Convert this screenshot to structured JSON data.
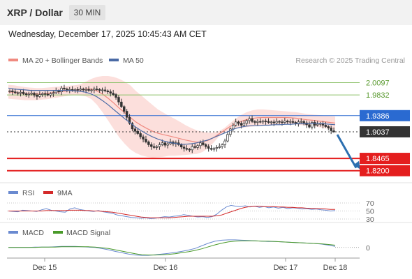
{
  "header": {
    "title": "XRP / Dollar",
    "timeframe": "30 MIN",
    "datetime": "Wednesday, December 17, 2025 10:45:43 AM CET"
  },
  "legend": {
    "ma20_label": "MA 20 + Bollinger Bands",
    "ma50_label": "MA 50",
    "credit": "Research © 2025 Trading Central",
    "rsi_label": "RSI",
    "rsi_ma_label": "9MA",
    "macd_label": "MACD",
    "macd_signal_label": "MACD Signal"
  },
  "colors": {
    "ma20": "#f08a80",
    "bollinger_fill": "#fbd7d3",
    "ma50": "#4a6aa5",
    "candle_up": "#333333",
    "candle_down": "#333333",
    "resistance_green": "#8dc26a",
    "pivot_blue": "#2a6ad1",
    "support_red": "#e41e1e",
    "current_price": "#333333",
    "arrow": "#2c6fb0",
    "rsi": "#6a8ad0",
    "rsi_ma": "#d42a2a",
    "macd": "#6a8ad0",
    "macd_signal": "#4a9a2a"
  },
  "chart_data": {
    "type": "candlestick",
    "instrument": "XRP / Dollar",
    "timeframe": "30 MIN",
    "x_tick_labels": [
      "Dec 15",
      "Dec 16",
      "Dec 17",
      "Dec 18"
    ],
    "price_range": [
      1.8,
      2.045
    ],
    "key_levels": [
      {
        "value": 2.0097,
        "kind": "resistance",
        "label": "2.0097"
      },
      {
        "value": 1.9832,
        "kind": "resistance",
        "label": "1.9832"
      },
      {
        "value": 1.9386,
        "kind": "pivot",
        "label": "1.9386"
      },
      {
        "value": 1.9037,
        "kind": "current",
        "label": "1.9037"
      },
      {
        "value": 1.8465,
        "kind": "support",
        "label": "1.8465"
      },
      {
        "value": 1.82,
        "kind": "support",
        "label": "1.8200"
      }
    ],
    "close_series": [
      1.992,
      1.99,
      1.988,
      1.987,
      1.989,
      1.986,
      1.984,
      1.985,
      1.987,
      1.983,
      1.98,
      1.984,
      1.986,
      1.985,
      1.983,
      1.986,
      1.988,
      1.992,
      1.99,
      1.998,
      1.996,
      1.994,
      1.995,
      1.993,
      1.995,
      1.994,
      1.996,
      1.994,
      1.995,
      1.993,
      1.994,
      1.996,
      1.995,
      1.993,
      1.994,
      1.992,
      1.99,
      1.987,
      1.984,
      1.978,
      1.968,
      1.958,
      1.948,
      1.935,
      1.922,
      1.91,
      1.905,
      1.9,
      1.893,
      1.888,
      1.882,
      1.876,
      1.872,
      1.87,
      1.872,
      1.876,
      1.88,
      1.875,
      1.878,
      1.882,
      1.878,
      1.88,
      1.876,
      1.871,
      1.868,
      1.866,
      1.865,
      1.872,
      1.87,
      1.874,
      1.88,
      1.876,
      1.872,
      1.868,
      1.866,
      1.868,
      1.87,
      1.872,
      1.876,
      1.884,
      1.898,
      1.91,
      1.918,
      1.925,
      1.922,
      1.918,
      1.922,
      1.928,
      1.932,
      1.926,
      1.924,
      1.926,
      1.925,
      1.927,
      1.926,
      1.924,
      1.925,
      1.923,
      1.926,
      1.925,
      1.924,
      1.927,
      1.925,
      1.926,
      1.924,
      1.922,
      1.925,
      1.926,
      1.923,
      1.919,
      1.914,
      1.924,
      1.918,
      1.92,
      1.922,
      1.918,
      1.915,
      1.912,
      1.906,
      1.904
    ],
    "bollinger_upper": [
      2.005,
      2.004,
      2.002,
      2.0,
      1.999,
      1.998,
      1.998,
      1.999,
      2.0,
      2.001,
      2.002,
      2.003,
      2.004,
      2.006,
      2.012,
      2.018,
      2.022,
      2.024,
      2.024,
      2.022,
      2.018,
      2.012,
      2.004,
      1.992,
      1.982,
      1.972,
      1.962,
      1.952,
      1.945,
      1.938,
      1.932,
      1.925,
      1.918,
      1.912,
      1.907,
      1.904,
      1.902,
      1.902,
      1.905,
      1.912,
      1.922,
      1.932,
      1.94,
      1.946,
      1.95,
      1.952,
      1.952,
      1.951,
      1.95,
      1.949,
      1.948,
      1.947,
      1.946,
      1.944,
      1.942,
      1.941,
      1.94,
      1.939,
      1.938,
      1.937
    ],
    "bollinger_lower": [
      1.975,
      1.974,
      1.973,
      1.972,
      1.972,
      1.972,
      1.973,
      1.974,
      1.976,
      1.978,
      1.98,
      1.982,
      1.983,
      1.982,
      1.98,
      1.974,
      1.962,
      1.946,
      1.928,
      1.91,
      1.892,
      1.878,
      1.866,
      1.858,
      1.853,
      1.85,
      1.848,
      1.849,
      1.85,
      1.852,
      1.852,
      1.853,
      1.854,
      1.855,
      1.856,
      1.86,
      1.868,
      1.88,
      1.893,
      1.902,
      1.908,
      1.911,
      1.912,
      1.914,
      1.915,
      1.916,
      1.917,
      1.918,
      1.919,
      1.92,
      1.921,
      1.921,
      1.92,
      1.918,
      1.917,
      1.916,
      1.914,
      1.912,
      1.91,
      1.908
    ],
    "ma50": [
      1.998,
      1.996,
      1.995,
      1.994,
      1.993,
      1.993,
      1.993,
      1.993,
      1.993,
      1.993,
      1.993,
      1.993,
      1.992,
      1.991,
      1.989,
      1.985,
      1.979,
      1.971,
      1.962,
      1.952,
      1.942,
      1.932,
      1.923,
      1.914,
      1.906,
      1.899,
      1.893,
      1.888,
      1.884,
      1.881,
      1.879,
      1.877,
      1.877,
      1.878,
      1.88,
      1.883,
      1.886,
      1.891,
      1.896,
      1.901,
      1.906,
      1.911,
      1.914,
      1.916,
      1.917,
      1.917,
      1.918,
      1.918,
      1.919,
      1.919,
      1.92,
      1.92,
      1.921,
      1.921,
      1.921,
      1.922,
      1.922,
      1.921,
      1.92,
      1.919
    ],
    "rsi_range": [
      30,
      70
    ],
    "rsi_ticks": [
      70,
      50,
      30
    ],
    "rsi_levels": [
      30,
      50,
      70
    ],
    "rsi": [
      50,
      49,
      48,
      52,
      51,
      50,
      49,
      53,
      56,
      52,
      50,
      48,
      47,
      55,
      58,
      54,
      52,
      50,
      49,
      51,
      48,
      46,
      44,
      40,
      38,
      36,
      34,
      33,
      32,
      33,
      31,
      32,
      34,
      36,
      35,
      37,
      38,
      41,
      39,
      37,
      35,
      36,
      34,
      36,
      42,
      52,
      60,
      64,
      62,
      61,
      63,
      60,
      62,
      59,
      61,
      58,
      60,
      57,
      59,
      56,
      58,
      57,
      55,
      56,
      54,
      55,
      53,
      52,
      50,
      51
    ],
    "rsi_9ma": [
      50,
      50,
      50,
      50,
      50,
      50,
      50,
      50,
      51,
      51,
      51,
      51,
      51,
      52,
      52,
      52,
      51,
      51,
      50,
      50,
      49,
      48,
      47,
      45,
      43,
      41,
      39,
      37,
      35,
      34,
      33,
      33,
      33,
      33,
      33,
      34,
      35,
      36,
      37,
      37,
      37,
      37,
      37,
      37,
      38,
      40,
      44,
      48,
      52,
      56,
      59,
      61,
      62,
      62,
      61,
      61,
      61,
      60,
      60,
      59,
      59,
      58,
      58,
      57,
      57,
      56,
      56,
      55,
      54,
      54
    ],
    "macd_ticks": [
      0
    ],
    "macd": [
      0.0,
      0.0,
      0.0,
      0.0,
      0.001,
      0.001,
      0.001,
      0.002,
      0.003,
      0.003,
      0.003,
      0.002,
      0.001,
      0.0,
      -0.003,
      -0.007,
      -0.012,
      -0.016,
      -0.02,
      -0.023,
      -0.024,
      -0.024,
      -0.022,
      -0.02,
      -0.018,
      -0.015,
      -0.012,
      -0.008,
      -0.003,
      0.005,
      0.013,
      0.019,
      0.022,
      0.023,
      0.023,
      0.022,
      0.021,
      0.02,
      0.019,
      0.018,
      0.018,
      0.017,
      0.016,
      0.015,
      0.014,
      0.013,
      0.012,
      0.01,
      0.007,
      0.003
    ],
    "macd_signal": [
      0.0,
      0.0,
      0.0,
      0.0,
      0.0,
      0.001,
      0.001,
      0.001,
      0.002,
      0.002,
      0.002,
      0.002,
      0.002,
      0.001,
      -0.001,
      -0.003,
      -0.007,
      -0.011,
      -0.015,
      -0.019,
      -0.022,
      -0.023,
      -0.023,
      -0.022,
      -0.021,
      -0.019,
      -0.016,
      -0.013,
      -0.009,
      -0.004,
      0.002,
      0.008,
      0.013,
      0.017,
      0.019,
      0.02,
      0.02,
      0.02,
      0.019,
      0.019,
      0.018,
      0.017,
      0.016,
      0.015,
      0.014,
      0.013,
      0.012,
      0.011,
      0.009,
      0.007
    ],
    "macd_range": [
      -0.028,
      0.027
    ],
    "projection": {
      "from": 1.9037,
      "to": 1.82,
      "direction": "down"
    }
  }
}
